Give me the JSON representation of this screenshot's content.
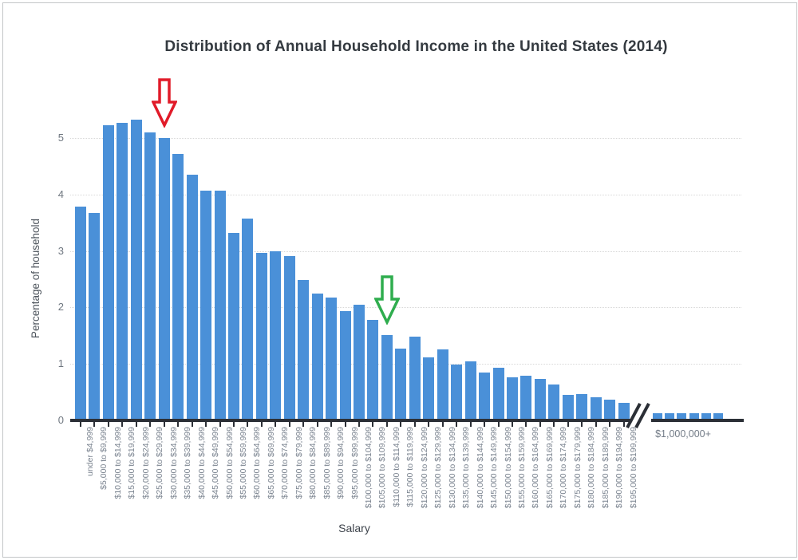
{
  "chart_data": {
    "type": "bar",
    "title": "Distribution of Annual Household Income in the United States (2014)",
    "xlabel": "Salary",
    "ylabel": "Percentage of household",
    "yticks": [
      0,
      1,
      2,
      3,
      4,
      5
    ],
    "ylim": [
      0,
      5.5
    ],
    "grid": "horizontal-dotted",
    "legend": "none",
    "bar_color": "#4a90d8",
    "categories": [
      "under $4,999",
      "$5,000 to $9,999",
      "$10,000 to $14,999",
      "$15,000 to $19,999",
      "$20,000 to $24,999",
      "$25,000 to $29,999",
      "$30,000 to $34,999",
      "$35,000 to $39,999",
      "$40,000 to $44,999",
      "$45,000 to $49,999",
      "$50,000 to $54,999",
      "$55,000 to $59,999",
      "$60,000 to $64,999",
      "$65,000 to $69,999",
      "$70,000 to $74,999",
      "$75,000 to $79,999",
      "$80,000 to $84,999",
      "$85,000 to $89,999",
      "$90,000 to $94,999",
      "$95,000 to $99,999",
      "$100,000 to $104,999",
      "$105,000 to $109,999",
      "$110,000 to $114,999",
      "$115,000 to $119,999",
      "$120,000 to $124,999",
      "$125,000 to $129,999",
      "$130,000 to $134,999",
      "$135,000 to $139,999",
      "$140,000 to $144,999",
      "$145,000 to $149,999",
      "$150,000 to $154,999",
      "$155,000 to $159,999",
      "$160,000 to $164,999",
      "$165,000 to $169,999",
      "$170,000 to $174,999",
      "$175,000 to $179,999",
      "$180,000 to $184,999",
      "$185,000 to $189,999",
      "$190,000 to $194,999",
      "$195,000 to $199,999"
    ],
    "values": [
      3.78,
      3.67,
      5.22,
      5.27,
      5.32,
      5.1,
      5.0,
      4.72,
      4.35,
      4.07,
      4.07,
      3.32,
      3.57,
      2.97,
      3.0,
      2.91,
      2.48,
      2.25,
      2.17,
      1.93,
      2.05,
      1.78,
      1.51,
      1.27,
      1.48,
      1.11,
      1.26,
      0.99,
      1.04,
      0.85,
      0.93,
      0.76,
      0.79,
      0.73,
      0.63,
      0.45,
      0.46,
      0.41,
      0.37,
      0.31
    ],
    "axis_break": true,
    "break_group": {
      "label": "$1,000,000+",
      "values": [
        0.1,
        0.1,
        0.1,
        0.1,
        0.1,
        0.1
      ]
    },
    "annotations": [
      {
        "name": "red-arrow",
        "type": "down-arrow-outline",
        "color": "#e11b29",
        "category": "$30,000 to $34,999"
      },
      {
        "name": "green-arrow",
        "type": "down-arrow-outline",
        "color": "#2fad4e",
        "category": "$110,000 to $114,999"
      }
    ]
  }
}
